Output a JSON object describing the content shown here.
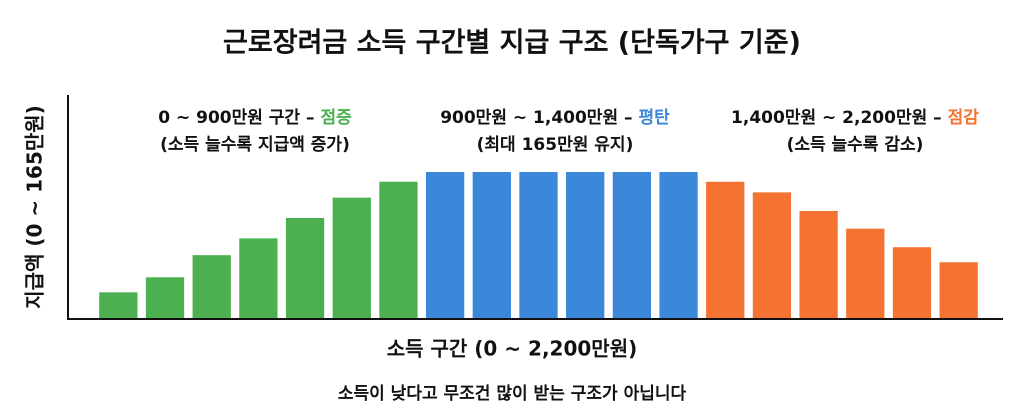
{
  "chart_data": {
    "type": "bar",
    "title": "근로장려금 소득 구간별 지급 구조 (단독가구 기준)",
    "x_label": "소득 구간 (0 ~ 2,200만원)",
    "y_label": "지급액 (0 ~ 165만원)",
    "footnote": "소득이 낮다고 무조건 많이 받는 구조가 아닙니다",
    "categories": [
      null,
      null,
      null,
      null,
      null,
      null,
      null,
      null,
      null,
      null,
      null,
      null,
      null,
      null,
      null,
      null,
      null,
      null,
      null
    ],
    "series": [
      {
        "color": "#4caf50",
        "values": [
          29,
          46,
          71,
          90,
          113,
          136,
          154,
          null,
          null,
          null,
          null,
          null,
          null,
          null,
          null,
          null,
          null,
          null,
          null
        ]
      },
      {
        "color": "#3b87d9",
        "values": [
          null,
          null,
          null,
          null,
          null,
          null,
          null,
          165,
          165,
          165,
          165,
          165,
          165,
          null,
          null,
          null,
          null,
          null,
          null
        ]
      },
      {
        "color": "#f47232",
        "values": [
          null,
          null,
          null,
          null,
          null,
          null,
          null,
          null,
          null,
          null,
          null,
          null,
          null,
          154,
          142,
          121,
          101,
          80,
          63
        ]
      }
    ],
    "ylim": [
      0,
      165
    ],
    "annotations": [
      {
        "text": "0 ~ 900만원 구간 –",
        "highlight": "점증",
        "highlight_color": "#4caf50",
        "note": "(소득 늘수록 지급액 증가)"
      },
      {
        "text": "900만원 ~ 1,400만원 –",
        "highlight": "평탄",
        "highlight_color": "#3b87d9",
        "note": "(최대 165만원 유지)"
      },
      {
        "text": "1,400만원 ~ 2,200만원 –",
        "highlight": "점감",
        "highlight_color": "#f47232",
        "note": "(소득 늘수록 감소)"
      }
    ]
  }
}
